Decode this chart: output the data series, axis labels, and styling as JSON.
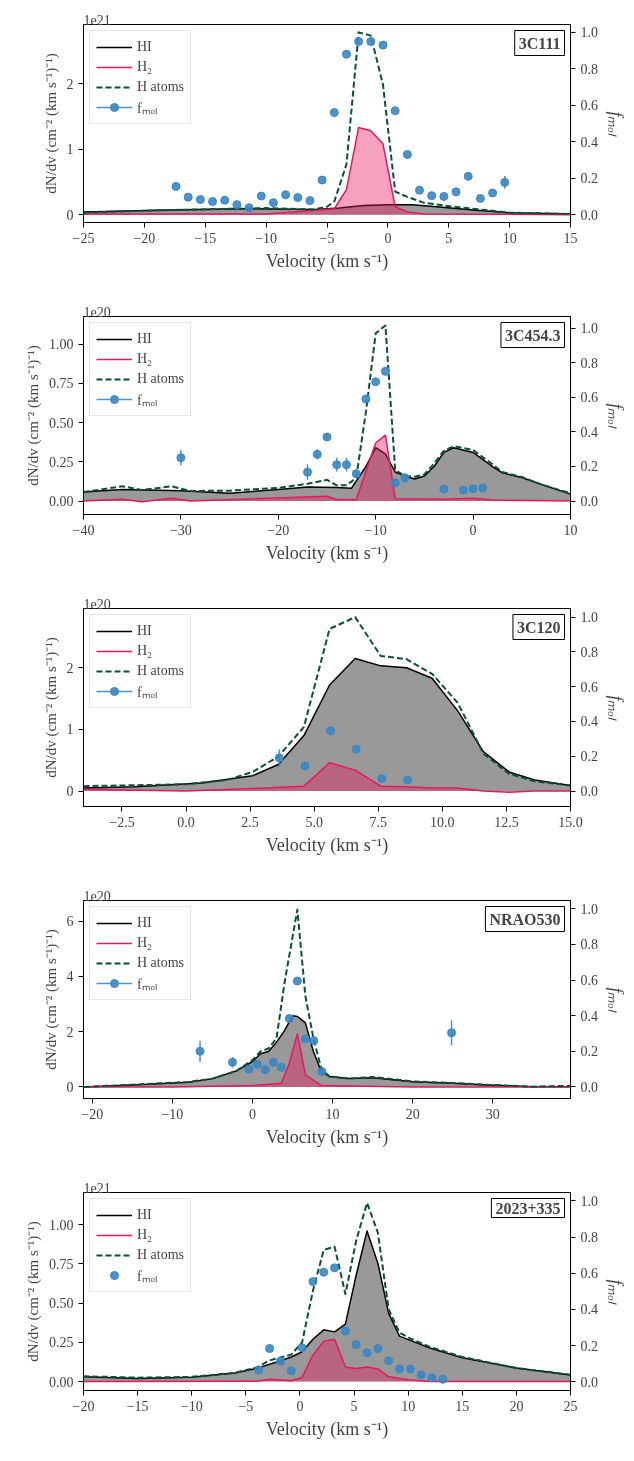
{
  "chart_data": [
    {
      "type": "line",
      "title": "3C111",
      "xlabel": "Velocity (km s⁻¹)",
      "ylabel": "dN/dv (cm⁻² (km s⁻¹)⁻¹)",
      "y2label": "fₘₒₗ",
      "annotations": [
        "1e21"
      ],
      "legend": "top left",
      "xlim": [
        -25,
        15
      ],
      "xticks": [
        {
          "value": -25,
          "label": "−25"
        },
        {
          "value": -20,
          "label": "−20"
        },
        {
          "value": -15,
          "label": "−15"
        },
        {
          "value": -10,
          "label": "−10"
        },
        {
          "value": -5,
          "label": "−5"
        },
        0,
        5,
        10,
        15
      ],
      "ylim": [
        -0.12,
        2.9
      ],
      "yticks": [
        0,
        1,
        2
      ],
      "y2lim": [
        -0.043,
        1.043
      ],
      "y2ticks": [
        {
          "value": 0,
          "label": "0.0"
        },
        {
          "value": 0.2,
          "label": "0.2"
        },
        {
          "value": 0.4,
          "label": "0.4"
        },
        {
          "value": 0.6,
          "label": "0.6"
        },
        {
          "value": 0.8,
          "label": "0.8"
        },
        {
          "value": 1,
          "label": "1.0"
        }
      ],
      "series": [
        {
          "name": "HI",
          "type": "area",
          "color": "#000000",
          "x": [
            -25,
            -18,
            -12,
            -6,
            -4,
            -2,
            0,
            2,
            4,
            7,
            10,
            15
          ],
          "values": [
            0.04,
            0.07,
            0.09,
            0.08,
            0.1,
            0.14,
            0.15,
            0.15,
            0.12,
            0.07,
            0.03,
            0.01
          ]
        },
        {
          "name": "H₂",
          "type": "area",
          "color": "#e8175d",
          "x": [
            -25,
            -10,
            -4.4,
            -3.4,
            -2.4,
            -1.4,
            -0.4,
            0.6,
            1.6,
            3,
            15
          ],
          "values": [
            0.01,
            0.01,
            0.09,
            0.38,
            1.33,
            1.28,
            1.08,
            0.12,
            0.04,
            0.01,
            0
          ]
        },
        {
          "name": "H atoms",
          "line_style": "dashed",
          "color": "#0b4f3c",
          "x": [
            -25,
            -18,
            -10,
            -6,
            -5,
            -4.4,
            -3.4,
            -2.4,
            -1.4,
            -0.4,
            0.6,
            1.6,
            3,
            5,
            8,
            10,
            15
          ],
          "values": [
            0.03,
            0.07,
            0.1,
            0.08,
            0.12,
            0.2,
            0.77,
            2.78,
            2.73,
            1.98,
            0.35,
            0.27,
            0.18,
            0.13,
            0.07,
            0.03,
            0.01
          ]
        },
        {
          "name": "fₘₒₗ",
          "type": "scatter",
          "axis": "y2",
          "marker": "circle",
          "color": "#3a87c5",
          "x": [
            -17.4,
            -16.4,
            -15.4,
            -14.4,
            -13.4,
            -12.4,
            -11.4,
            -10.4,
            -9.4,
            -8.4,
            -7.4,
            -6.4,
            -5.4,
            -4.4,
            -3.4,
            -2.4,
            -1.4,
            -0.4,
            0.6,
            1.6,
            2.6,
            3.6,
            4.6,
            5.6,
            6.6,
            7.6,
            8.6,
            9.6
          ],
          "values": [
            0.155,
            0.096,
            0.083,
            0.072,
            0.079,
            0.055,
            0.038,
            0.102,
            0.066,
            0.109,
            0.094,
            0.077,
            0.19,
            0.56,
            0.88,
            0.95,
            0.95,
            0.93,
            0.57,
            0.33,
            0.134,
            0.104,
            0.1,
            0.125,
            0.21,
            0.089,
            0.119,
            0.177
          ],
          "errors": [
            null,
            null,
            null,
            null,
            null,
            null,
            null,
            null,
            null,
            null,
            null,
            null,
            null,
            null,
            null,
            null,
            null,
            null,
            null,
            null,
            null,
            null,
            null,
            null,
            null,
            null,
            null,
            0.035
          ]
        }
      ]
    },
    {
      "type": "line",
      "title": "3C454.3",
      "xlabel": "Velocity (km s⁻¹)",
      "ylabel": "dN/dv (cm⁻² (km s⁻¹)⁻¹)",
      "y2label": "fₘₒₗ",
      "annotations": [
        "1e20"
      ],
      "legend": "top left",
      "xlim": [
        -40,
        10
      ],
      "xticks": [
        {
          "value": -40,
          "label": "−40"
        },
        {
          "value": -30,
          "label": "−30"
        },
        {
          "value": -20,
          "label": "−20"
        },
        {
          "value": -10,
          "label": "−10"
        },
        0,
        10
      ],
      "ylim": [
        -0.086,
        1.177
      ],
      "yticks": [
        {
          "value": 0,
          "label": "0.00"
        },
        {
          "value": 0.25,
          "label": "0.25"
        },
        {
          "value": 0.5,
          "label": "0.50"
        },
        {
          "value": 0.75,
          "label": "0.75"
        },
        {
          "value": 1,
          "label": "1.00"
        }
      ],
      "y2lim": [
        -0.078,
        1.067
      ],
      "y2ticks": [
        {
          "value": 0,
          "label": "0.0"
        },
        {
          "value": 0.2,
          "label": "0.2"
        },
        {
          "value": 0.4,
          "label": "0.4"
        },
        {
          "value": 0.6,
          "label": "0.6"
        },
        {
          "value": 0.8,
          "label": "0.8"
        },
        {
          "value": 1,
          "label": "1.0"
        }
      ],
      "series": [
        {
          "name": "HI",
          "type": "area",
          "color": "#000000",
          "x": [
            -40,
            -36,
            -30,
            -25,
            -20,
            -17,
            -14,
            -12.5,
            -11,
            -10,
            -9,
            -8,
            -7,
            -6,
            -5,
            -4,
            -3,
            -2,
            0,
            2,
            3,
            5,
            7,
            10
          ],
          "values": [
            0.057,
            0.074,
            0.066,
            0.049,
            0.074,
            0.089,
            0.086,
            0.081,
            0.22,
            0.34,
            0.3,
            0.185,
            0.16,
            0.14,
            0.16,
            0.22,
            0.31,
            0.34,
            0.31,
            0.22,
            0.18,
            0.15,
            0.106,
            0.044
          ]
        },
        {
          "name": "H₂",
          "type": "area",
          "color": "#e8175d",
          "x": [
            -40,
            -36,
            -34,
            -31,
            -29,
            -15,
            -14,
            -12,
            -10,
            -9,
            -8,
            -3,
            0,
            2,
            10
          ],
          "values": [
            0,
            0.012,
            -0.005,
            0.017,
            0,
            0.03,
            0.01,
            0.01,
            0.37,
            0.42,
            0.015,
            0.012,
            0.017,
            0.007,
            0
          ]
        },
        {
          "name": "H atoms",
          "line_style": "dashed",
          "color": "#0b4f3c",
          "x": [
            -40,
            -36,
            -34,
            -31,
            -29,
            -25,
            -20,
            -17,
            -15,
            -14,
            -13,
            -12,
            -11,
            -10,
            -9,
            -8,
            -7,
            -6,
            -5,
            -4,
            -3,
            -2,
            0,
            2,
            3,
            5,
            7,
            10
          ],
          "values": [
            0.057,
            0.094,
            0.07,
            0.094,
            0.064,
            0.066,
            0.084,
            0.11,
            0.135,
            0.1,
            0.1,
            0.148,
            0.57,
            1.07,
            1.12,
            0.197,
            0.16,
            0.155,
            0.17,
            0.24,
            0.32,
            0.35,
            0.325,
            0.234,
            0.185,
            0.153,
            0.106,
            0.049
          ]
        },
        {
          "name": "fₘₒₗ",
          "type": "scatter",
          "axis": "y2",
          "marker": "circle",
          "color": "#3a87c5",
          "x": [
            -30,
            -17,
            -16,
            -15,
            -14,
            -13,
            -12,
            -11,
            -10,
            -9,
            -8,
            -7,
            -3,
            -1,
            0,
            1
          ],
          "values": [
            0.25,
            0.167,
            0.27,
            0.37,
            0.21,
            0.21,
            0.158,
            0.59,
            0.69,
            0.75,
            0.105,
            0.134,
            0.069,
            0.063,
            0.071,
            0.076
          ],
          "errors": [
            0.045,
            0.045,
            0.03,
            0.02,
            0.04,
            0.04,
            0.025,
            null,
            null,
            null,
            null,
            0.025,
            null,
            null,
            null,
            null
          ]
        }
      ]
    },
    {
      "type": "line",
      "title": "3C120",
      "xlabel": "Velocity (km s⁻¹)",
      "ylabel": "dN/dv (cm⁻² (km s⁻¹)⁻¹)",
      "y2label": "fₘₒₗ",
      "annotations": [
        "1e20"
      ],
      "legend": "top left",
      "xlim": [
        -4,
        15
      ],
      "xticks": [
        {
          "value": -2.5,
          "label": "−2.5"
        },
        {
          "value": 0,
          "label": "0.0"
        },
        {
          "value": 2.5,
          "label": "2.5"
        },
        {
          "value": 5,
          "label": "5.0"
        },
        {
          "value": 7.5,
          "label": "7.5"
        },
        {
          "value": 10,
          "label": "10.0"
        },
        {
          "value": 12.5,
          "label": "12.5"
        },
        {
          "value": 15,
          "label": "15.0"
        }
      ],
      "ylim": [
        -0.25,
        2.96
      ],
      "yticks": [
        0,
        1,
        2
      ],
      "y2lim": [
        -0.089,
        1.049
      ],
      "y2ticks": [
        {
          "value": 0,
          "label": "0.0"
        },
        {
          "value": 0.2,
          "label": "0.2"
        },
        {
          "value": 0.4,
          "label": "0.4"
        },
        {
          "value": 0.6,
          "label": "0.6"
        },
        {
          "value": 0.8,
          "label": "0.8"
        },
        {
          "value": 1,
          "label": "1.0"
        }
      ],
      "series": [
        {
          "name": "HI",
          "type": "area",
          "color": "#000000",
          "x": [
            -4,
            -2,
            0.6,
            2.6,
            3.6,
            4.6,
            5.6,
            6.6,
            7.6,
            8.6,
            9.6,
            10.6,
            11.6,
            12.6,
            13.6,
            15
          ],
          "values": [
            0.05,
            0.07,
            0.13,
            0.25,
            0.43,
            0.9,
            1.72,
            2.15,
            2.03,
            2.0,
            1.83,
            1.3,
            0.64,
            0.31,
            0.18,
            0.09
          ]
        },
        {
          "name": "H₂",
          "type": "area",
          "color": "#e8175d",
          "x": [
            -4,
            0,
            2.6,
            4.6,
            5.6,
            6.6,
            7.6,
            8.6,
            9.6,
            10.6,
            11.6,
            12.6,
            13.6,
            15
          ],
          "values": [
            0.03,
            0,
            0.04,
            0.08,
            0.46,
            0.34,
            0.08,
            0.07,
            0.05,
            0.05,
            0,
            -0.02,
            0,
            0
          ]
        },
        {
          "name": "H atoms",
          "line_style": "dashed",
          "color": "#0b4f3c",
          "x": [
            -4,
            0,
            1.6,
            2.6,
            3.6,
            4.6,
            5.6,
            6.6,
            7.6,
            8.6,
            9.6,
            10.6,
            11.6,
            12.6,
            13.6,
            15
          ],
          "values": [
            0.08,
            0.11,
            0.18,
            0.31,
            0.56,
            1.04,
            2.63,
            2.82,
            2.19,
            2.14,
            1.9,
            1.43,
            0.61,
            0.28,
            0.16,
            0.09
          ]
        },
        {
          "name": "fₘₒₗ",
          "type": "scatter",
          "axis": "y2",
          "marker": "circle",
          "color": "#3a87c5",
          "x": [
            3.64,
            4.64,
            5.64,
            6.64,
            7.64,
            8.64
          ],
          "values": [
            0.19,
            0.144,
            0.346,
            0.24,
            0.071,
            0.064
          ],
          "errors": [
            0.05,
            0.02,
            null,
            null,
            null,
            null
          ]
        }
      ]
    },
    {
      "type": "line",
      "title": "NRAO530",
      "xlabel": "Velocity (km s⁻¹)",
      "ylabel": "dN/dv (cm⁻² (km s⁻¹)⁻¹)",
      "y2label": "fₘₒₗ",
      "annotations": [
        "1e20"
      ],
      "legend": "top left",
      "xlim": [
        -21.1,
        39.7
      ],
      "xticks": [
        {
          "value": -20,
          "label": "−20"
        },
        {
          "value": -10,
          "label": "−10"
        },
        0,
        10,
        20,
        30
      ],
      "ylim": [
        -0.42,
        6.75
      ],
      "yticks": [
        0,
        2,
        4,
        6
      ],
      "y2lim": [
        -0.065,
        1.047
      ],
      "y2ticks": [
        {
          "value": 0,
          "label": "0.0"
        },
        {
          "value": 0.2,
          "label": "0.2"
        },
        {
          "value": 0.4,
          "label": "0.4"
        },
        {
          "value": 0.6,
          "label": "0.6"
        },
        {
          "value": 0.8,
          "label": "0.8"
        },
        {
          "value": 1,
          "label": "1.0"
        }
      ],
      "series": [
        {
          "name": "HI",
          "type": "area",
          "color": "#000000",
          "x": [
            -21,
            -15,
            -8,
            -5,
            -2,
            0,
            1,
            2,
            3,
            4,
            5,
            5.6,
            6.6,
            7.6,
            8.6,
            9.6,
            12,
            15,
            20,
            25,
            30,
            35,
            39.7
          ],
          "values": [
            0,
            0.07,
            0.17,
            0.3,
            0.58,
            0.92,
            1.2,
            1.28,
            1.62,
            2.04,
            2.58,
            2.55,
            2.32,
            1.28,
            0.56,
            0.38,
            0.3,
            0.33,
            0.19,
            0.13,
            0.06,
            0.01,
            0.01
          ]
        },
        {
          "name": "H₂",
          "type": "area",
          "color": "#e8175d",
          "x": [
            -21,
            -10,
            0,
            3.6,
            4.6,
            5.6,
            6.6,
            8.6,
            20,
            39.7
          ],
          "values": [
            0,
            0,
            0.05,
            0.13,
            0.86,
            1.92,
            0.44,
            0.05,
            0,
            0
          ]
        },
        {
          "name": "H atoms",
          "line_style": "dashed",
          "color": "#0b4f3c",
          "x": [
            -21,
            -15,
            -8,
            -5,
            -2,
            0,
            1,
            2,
            3,
            4,
            5.6,
            6.6,
            7.6,
            8.6,
            9.6,
            12,
            15,
            20,
            25,
            30,
            35,
            39.7
          ],
          "values": [
            0,
            0.08,
            0.18,
            0.3,
            0.58,
            0.97,
            1.28,
            1.39,
            1.76,
            3.78,
            6.42,
            3.29,
            1.76,
            0.65,
            0.38,
            0.3,
            0.36,
            0.2,
            0.14,
            0.07,
            0.01,
            0.04
          ]
        },
        {
          "name": "fₘₒₗ",
          "type": "scatter",
          "axis": "y2",
          "marker": "circle",
          "color": "#3a87c5",
          "x": [
            -6.55,
            -2.5,
            -0.45,
            0.6,
            1.6,
            2.6,
            3.6,
            4.6,
            5.6,
            6.6,
            7.65,
            8.65,
            24.85
          ],
          "values": [
            0.2,
            0.138,
            0.1,
            0.127,
            0.097,
            0.138,
            0.11,
            0.384,
            0.595,
            0.27,
            0.26,
            0.086,
            0.304
          ],
          "errors": [
            0.06,
            0.03,
            null,
            null,
            null,
            null,
            null,
            null,
            null,
            null,
            null,
            0.02,
            0.07
          ]
        }
      ]
    },
    {
      "type": "line",
      "title": "2023+335",
      "xlabel": "Velocity (km s⁻¹)",
      "ylabel": "dN/dv (cm⁻² (km s⁻¹)⁻¹)",
      "y2label": "fₘₒₗ",
      "annotations": [
        "1e21"
      ],
      "legend": "top left",
      "xlim": [
        -20,
        25
      ],
      "xticks": [
        {
          "value": -20,
          "label": "−20"
        },
        {
          "value": -15,
          "label": "−15"
        },
        {
          "value": -10,
          "label": "−10"
        },
        {
          "value": -5,
          "label": "−5"
        },
        0,
        5,
        10,
        15,
        20,
        25
      ],
      "ylim": [
        -0.057,
        1.206
      ],
      "yticks": [
        {
          "value": 0,
          "label": "0.00"
        },
        {
          "value": 0.25,
          "label": "0.25"
        },
        {
          "value": 0.5,
          "label": "0.50"
        },
        {
          "value": 0.75,
          "label": "0.75"
        },
        {
          "value": 1,
          "label": "1.00"
        }
      ],
      "y2lim": [
        -0.049,
        1.047
      ],
      "y2ticks": [
        {
          "value": 0,
          "label": "0.0"
        },
        {
          "value": 0.2,
          "label": "0.2"
        },
        {
          "value": 0.4,
          "label": "0.4"
        },
        {
          "value": 0.6,
          "label": "0.6"
        },
        {
          "value": 0.8,
          "label": "0.8"
        },
        {
          "value": 1,
          "label": "1.0"
        }
      ],
      "series": [
        {
          "name": "HI",
          "type": "area",
          "color": "#000000",
          "x": [
            -20,
            -15,
            -10,
            -6,
            -4,
            -2,
            -0.8,
            0.2,
            1.2,
            2.2,
            3.2,
            4.2,
            5.2,
            6.2,
            7.2,
            8.2,
            9.2,
            10.2,
            12,
            15,
            20,
            25
          ],
          "values": [
            0.03,
            0.02,
            0.027,
            0.054,
            0.084,
            0.128,
            0.157,
            0.19,
            0.27,
            0.33,
            0.317,
            0.366,
            0.68,
            0.96,
            0.755,
            0.435,
            0.29,
            0.263,
            0.214,
            0.152,
            0.086,
            0.042
          ]
        },
        {
          "name": "H₂",
          "type": "area",
          "color": "#e8175d",
          "x": [
            -20,
            -4,
            -2.8,
            -0.8,
            0.2,
            1.2,
            2.2,
            3.2,
            4.2,
            5.2,
            6.2,
            7.2,
            8.2,
            10,
            12,
            25
          ],
          "values": [
            0,
            0.002,
            0.015,
            0.005,
            0.027,
            0.17,
            0.258,
            0.27,
            0.093,
            0.084,
            0.093,
            0.081,
            0.03,
            0.012,
            0,
            0
          ]
        },
        {
          "name": "H atoms",
          "line_style": "dashed",
          "color": "#0b4f3c",
          "x": [
            -20,
            -15,
            -10,
            -6,
            -4,
            -2.8,
            -0.8,
            0.2,
            1.2,
            2.2,
            3.2,
            4.2,
            5.2,
            6.2,
            7.2,
            8.2,
            9.2,
            10.2,
            12,
            15,
            20,
            25
          ],
          "values": [
            0.034,
            0.025,
            0.03,
            0.056,
            0.09,
            0.135,
            0.172,
            0.25,
            0.58,
            0.84,
            0.86,
            0.558,
            0.9,
            1.14,
            0.95,
            0.46,
            0.312,
            0.275,
            0.221,
            0.157,
            0.086,
            0.044
          ]
        },
        {
          "name": "fₘₒₗ",
          "type": "scatter",
          "axis": "y2",
          "marker": "circle",
          "color": "#3a87c5",
          "x": [
            -3.8,
            -2.8,
            -1.8,
            -0.8,
            0.2,
            1.2,
            2.2,
            3.2,
            4.2,
            5.2,
            6.2,
            7.2,
            8.2,
            9.2,
            10.2,
            11.2,
            12.2,
            13.2
          ],
          "values": [
            0.064,
            0.183,
            0.113,
            0.06,
            0.188,
            0.554,
            0.606,
            0.63,
            0.28,
            0.205,
            0.16,
            0.183,
            0.115,
            0.07,
            0.07,
            0.038,
            0.021,
            0.013
          ]
        }
      ]
    }
  ]
}
